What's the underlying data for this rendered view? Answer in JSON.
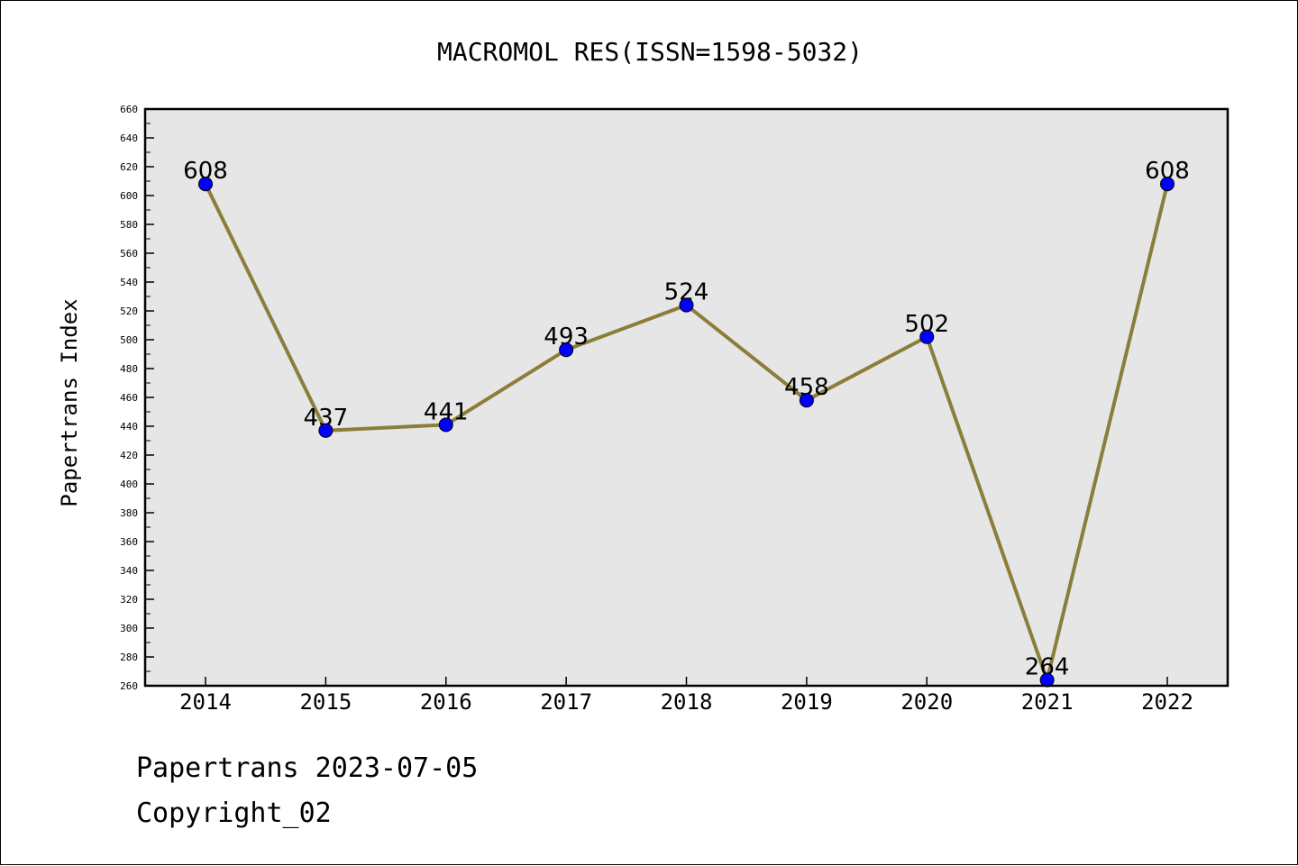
{
  "chart_data": {
    "type": "line",
    "title": "MACROMOL RES(ISSN=1598-5032)",
    "ylabel": "Papertrans Index",
    "xlabel": "",
    "categories": [
      "2014",
      "2015",
      "2016",
      "2017",
      "2018",
      "2019",
      "2020",
      "2021",
      "2022"
    ],
    "series": [
      {
        "values": [
          608,
          437,
          441,
          493,
          524,
          458,
          502,
          264,
          608
        ],
        "data_labels": [
          "608",
          "437",
          "441",
          "493",
          "524",
          "458",
          "502",
          "264",
          "608"
        ]
      }
    ],
    "ylim": [
      260,
      660
    ],
    "ytick_step": 20,
    "yticks": [
      "260",
      "280",
      "300",
      "320",
      "340",
      "360",
      "380",
      "400",
      "420",
      "440",
      "460",
      "480",
      "500",
      "520",
      "540",
      "560",
      "580",
      "600",
      "620",
      "640",
      "660"
    ],
    "grid": false,
    "colors": {
      "line": "#8B7D3A",
      "marker": "#0000FF",
      "plot_background": "#E6E6E6"
    }
  },
  "footer": {
    "line1": "Papertrans 2023-07-05",
    "line2": "Copyright_02"
  }
}
